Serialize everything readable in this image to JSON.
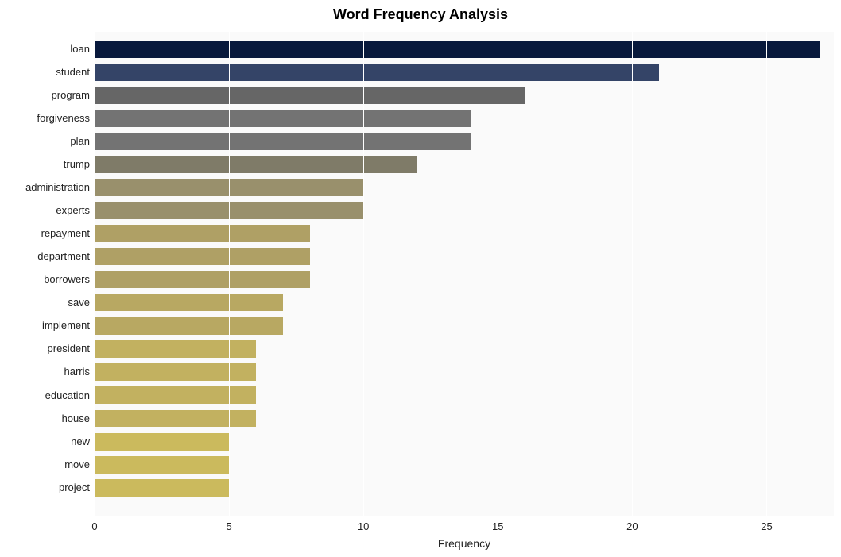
{
  "chart": {
    "type": "bar-horizontal",
    "title": "Word Frequency Analysis",
    "title_fontsize": 18,
    "title_fontweight": "bold",
    "xlabel": "Frequency",
    "label_fontsize": 14,
    "background_color": "#ffffff",
    "plot_background_color": "#fafafa",
    "grid_color": "#ffffff",
    "bar_height_ratio": 0.76,
    "xlim": [
      0,
      27.5
    ],
    "xtick_positions": [
      0,
      5,
      10,
      15,
      20,
      25
    ],
    "xtick_labels": [
      "0",
      "5",
      "10",
      "15",
      "20",
      "25"
    ],
    "categories": [
      "loan",
      "student",
      "program",
      "forgiveness",
      "plan",
      "trump",
      "administration",
      "experts",
      "repayment",
      "department",
      "borrowers",
      "save",
      "implement",
      "president",
      "harris",
      "education",
      "house",
      "new",
      "move",
      "project"
    ],
    "values": [
      27,
      21,
      16,
      14,
      14,
      12,
      10,
      10,
      8,
      8,
      8,
      7,
      7,
      6,
      6,
      6,
      6,
      5,
      5,
      5
    ],
    "bar_colors": [
      "#08193c",
      "#344467",
      "#666666",
      "#737373",
      "#737373",
      "#7f7b68",
      "#99906c",
      "#99906c",
      "#afa065",
      "#afa065",
      "#afa065",
      "#b8a862",
      "#b8a862",
      "#c2b160",
      "#c2b160",
      "#c2b160",
      "#c2b160",
      "#cbba5d",
      "#cbba5d",
      "#cbba5d"
    ],
    "y_axis_fontsize": 13,
    "x_axis_fontsize": 13,
    "text_color": "#222222"
  }
}
